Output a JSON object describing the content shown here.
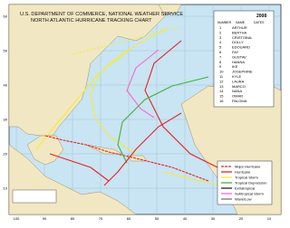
{
  "header": {
    "agency": "U.S. DEPARTMENT OF COMMERCE, NATIONAL WEATHER SERVICE",
    "title": "NORTH ATLANTIC HURRICANE TRACKING CHART"
  },
  "storm_list": {
    "year": "2008",
    "heading": [
      "NUMBER",
      "NAME",
      "DATES"
    ],
    "storms": [
      [
        "1",
        "ARTHUR"
      ],
      [
        "2",
        "BERTHA"
      ],
      [
        "3",
        "CRISTOBAL"
      ],
      [
        "4",
        "DOLLY"
      ],
      [
        "5",
        "EDOUARD"
      ],
      [
        "6",
        "FAY"
      ],
      [
        "7",
        "GUSTAV"
      ],
      [
        "8",
        "HANNA"
      ],
      [
        "9",
        "IKE"
      ],
      [
        "10",
        "JOSEPHINE"
      ],
      [
        "11",
        "KYLE"
      ],
      [
        "12",
        "LAURA"
      ],
      [
        "13",
        "MARCO"
      ],
      [
        "14",
        "NANA"
      ],
      [
        "15",
        "OMAR"
      ],
      [
        "16",
        "PALOMA"
      ]
    ]
  },
  "legend": [
    "Major Hurricane",
    "Hurricane",
    "Tropical Storm",
    "Tropical Depression",
    "Extratropical",
    "Subtropical Storm",
    "Wave/Low"
  ],
  "grid": {
    "lon_labels": [
      "100",
      "90",
      "80",
      "70",
      "60",
      "50",
      "40",
      "30",
      "20",
      "10"
    ],
    "lat_labels": [
      "60",
      "50",
      "40",
      "30",
      "20",
      "10"
    ]
  }
}
